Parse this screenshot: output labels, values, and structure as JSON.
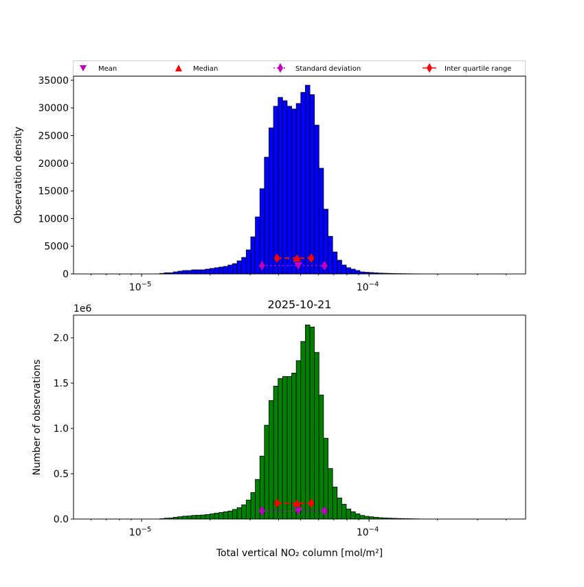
{
  "chart_data": [
    {
      "type": "bar",
      "subtype": "histogram",
      "xscale": "log",
      "title": "",
      "xlabel": "",
      "ylabel": "Observation density",
      "xlim": [
        5.02e-06,
        0.000488
      ],
      "ylim": [
        0,
        35730
      ],
      "yticks": [
        0,
        5000,
        10000,
        15000,
        20000,
        25000,
        30000,
        35000
      ],
      "ytick_labels": [
        "0",
        "5000",
        "10000",
        "15000",
        "20000",
        "25000",
        "30000",
        "35000"
      ],
      "xticks": [
        1e-05,
        0.0001
      ],
      "xtick_labels": [
        {
          "base": "10",
          "exp": "−5"
        },
        {
          "base": "10",
          "exp": "−4"
        }
      ],
      "bar_color": "#0000ff",
      "bin_log10_start": -4.92,
      "bin_log10_width": 0.02,
      "values": [
        100,
        210,
        210,
        370,
        500,
        620,
        620,
        740,
        740,
        740,
        870,
        990,
        1120,
        1240,
        1360,
        1610,
        1860,
        2360,
        2980,
        4340,
        6700,
        10300,
        15400,
        21100,
        26400,
        30300,
        31900,
        31300,
        30300,
        29800,
        30800,
        32800,
        34100,
        32400,
        26900,
        19100,
        11700,
        6800,
        3970,
        2480,
        1610,
        1120,
        870,
        620,
        370,
        300,
        250,
        200,
        150,
        120,
        100,
        80,
        60,
        50,
        40,
        30,
        20
      ],
      "markers": {
        "mean": {
          "x": 4.89e-05,
          "y": 1500
        },
        "median": {
          "x": 4.82e-05,
          "y": 2850
        },
        "std": {
          "x": [
            3.38e-05,
            6.37e-05
          ],
          "y": 1500
        },
        "iqr": {
          "x": [
            3.94e-05,
            5.57e-05
          ],
          "y": 2850
        }
      }
    },
    {
      "type": "bar",
      "subtype": "histogram",
      "xscale": "log",
      "title": "2025-10-21",
      "xlabel": "Total vertical NO₂ column [mol/m²]",
      "ylabel": "Number of observations",
      "offset_label": "1e6",
      "xlim": [
        5.02e-06,
        0.000488
      ],
      "ylim": [
        0,
        2.25
      ],
      "yticks": [
        0,
        0.5,
        1.0,
        1.5,
        2.0
      ],
      "ytick_labels": [
        "0.0",
        "0.5",
        "1.0",
        "1.5",
        "2.0"
      ],
      "xticks": [
        1e-05,
        0.0001
      ],
      "xtick_labels": [
        {
          "base": "10",
          "exp": "−5"
        },
        {
          "base": "10",
          "exp": "−4"
        }
      ],
      "bar_color": "#008000",
      "bin_log10_start": -4.92,
      "bin_log10_width": 0.02,
      "values": [
        0.004,
        0.01,
        0.012,
        0.02,
        0.026,
        0.032,
        0.034,
        0.04,
        0.042,
        0.045,
        0.05,
        0.057,
        0.065,
        0.072,
        0.08,
        0.089,
        0.106,
        0.126,
        0.157,
        0.21,
        0.293,
        0.437,
        0.695,
        1.036,
        1.308,
        1.467,
        1.551,
        1.573,
        1.573,
        1.611,
        1.748,
        1.96,
        2.142,
        2.119,
        1.839,
        1.369,
        0.892,
        0.558,
        0.354,
        0.233,
        0.164,
        0.111,
        0.081,
        0.058,
        0.04,
        0.03,
        0.025,
        0.02,
        0.015,
        0.012,
        0.01,
        0.008,
        0.006,
        0.005,
        0.004,
        0.003,
        0.002
      ],
      "markers": {
        "mean": {
          "x": 4.89e-05,
          "y": 0.09
        },
        "median": {
          "x": 4.82e-05,
          "y": 0.174
        },
        "std": {
          "x": [
            3.38e-05,
            6.37e-05
          ],
          "y": 0.09
        },
        "iqr": {
          "x": [
            3.94e-05,
            5.57e-05
          ],
          "y": 0.174
        }
      }
    }
  ],
  "legend": {
    "placement": "top",
    "entries": [
      {
        "label": "Mean",
        "marker": "triangle-down",
        "color": "#bf00bf"
      },
      {
        "label": "Median",
        "marker": "triangle-up",
        "color": "#ff0000"
      },
      {
        "label": "Standard deviation",
        "marker": "diamond-dotted",
        "color": "#bf00bf"
      },
      {
        "label": "Inter quartile range",
        "marker": "diamond-line",
        "color": "#ff0000"
      }
    ]
  }
}
